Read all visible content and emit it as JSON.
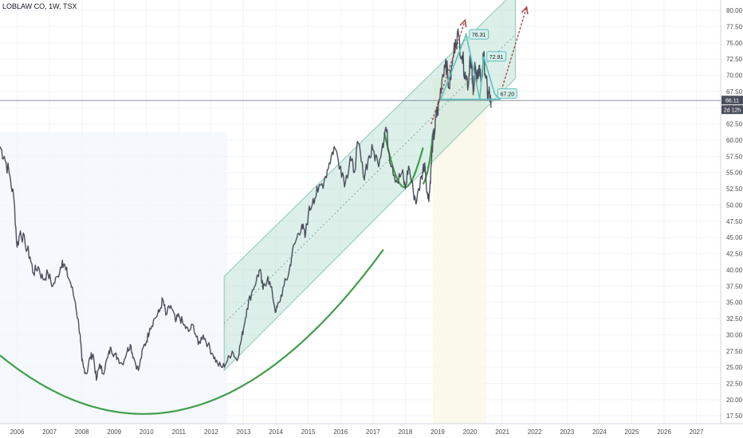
{
  "chart_data": {
    "type": "line",
    "title": "LOBLAW CO, 1W, TSX",
    "x_ticks": [
      "2006",
      "2007",
      "2008",
      "2009",
      "2010",
      "2011",
      "2012",
      "2013",
      "2014",
      "2015",
      "2016",
      "2017",
      "2018",
      "2019",
      "2020",
      "2021",
      "2022",
      "2023",
      "2024",
      "2025",
      "2026",
      "2027"
    ],
    "y_ticks": [
      "80.00",
      "77.50",
      "75.00",
      "72.50",
      "70.00",
      "67.50",
      "65.00",
      "62.50",
      "60.00",
      "57.50",
      "55.00",
      "52.50",
      "50.00",
      "47.50",
      "45.00",
      "42.50",
      "40.00",
      "37.50",
      "35.00",
      "32.50",
      "30.00",
      "27.50",
      "25.00",
      "22.50",
      "20.00",
      "17.50"
    ],
    "ylim": [
      16.3,
      81.6
    ],
    "xlim": [
      2005.47,
      2027.75
    ],
    "grid": true,
    "last_price": "66.11",
    "countdown": "2d 12h",
    "colors": {
      "price": "#4a4f5c",
      "curve": "#3f9e4a",
      "channel_fill": "#bfe1d6",
      "channel_border": "#8fc9b6",
      "pattern": "#5bbfbf",
      "arrow": "#a64b4b",
      "badge": "#4a4f5c"
    },
    "annotations": [
      {
        "label": "76.31",
        "x": 2019.88,
        "y": 76.31
      },
      {
        "label": "72.91",
        "x": 2020.42,
        "y": 72.91
      },
      {
        "label": "67.20",
        "x": 2020.76,
        "y": 67.2
      }
    ],
    "series": [
      {
        "x": [
          2005.47,
          2005.6,
          2005.75,
          2005.9,
          2006.0,
          2006.1,
          2006.25,
          2006.4,
          2006.5,
          2006.65,
          2006.8,
          2006.95,
          2007.1,
          2007.25,
          2007.4,
          2007.5,
          2007.65,
          2007.8,
          2007.95,
          2008.0,
          2008.05,
          2008.15,
          2008.25,
          2008.35,
          2008.45,
          2008.55,
          2008.65,
          2008.8,
          2008.9,
          2009.0,
          2009.1,
          2009.25,
          2009.4,
          2009.5,
          2009.6,
          2009.75,
          2009.9,
          2010.0,
          2010.1,
          2010.25,
          2010.4,
          2010.5,
          2010.6,
          2010.75,
          2010.9,
          2011.0,
          2011.15,
          2011.3,
          2011.45,
          2011.6,
          2011.75,
          2011.9,
          2012.05,
          2012.2,
          2012.35,
          2012.5,
          2012.65,
          2012.8,
          2012.9,
          2013.0,
          2013.1,
          2013.25,
          2013.4,
          2013.5,
          2013.6,
          2013.75,
          2013.9,
          2014.0,
          2014.1,
          2014.25,
          2014.4,
          2014.5,
          2014.65,
          2014.8,
          2014.9,
          2015.0,
          2015.15,
          2015.3,
          2015.5,
          2015.65,
          2015.8,
          2016.0,
          2016.15,
          2016.3,
          2016.4,
          2016.55,
          2016.7,
          2016.85,
          2017.0,
          2017.15,
          2017.3,
          2017.4,
          2017.5,
          2017.6,
          2017.75,
          2017.9,
          2018.0,
          2018.1,
          2018.25,
          2018.35,
          2018.5,
          2018.6,
          2018.7,
          2018.75,
          2018.8,
          2018.85,
          2018.9,
          2018.95,
          2019.0,
          2019.05,
          2019.15,
          2019.25,
          2019.35,
          2019.45,
          2019.55,
          2019.65,
          2019.75,
          2019.85,
          2019.95,
          2020.0,
          2020.05,
          2020.1,
          2020.15,
          2020.2,
          2020.28,
          2020.35,
          2020.42,
          2020.5,
          2020.55,
          2020.6,
          2020.65
        ],
        "values": [
          59.0,
          57.5,
          55.0,
          51.0,
          43.5,
          46.0,
          44.0,
          42.0,
          39.5,
          40.5,
          38.5,
          39.5,
          37.5,
          39.0,
          41.5,
          40.0,
          38.0,
          35.0,
          30.0,
          26.0,
          25.0,
          24.0,
          26.5,
          27.0,
          23.0,
          25.5,
          24.0,
          26.5,
          28.0,
          27.0,
          26.5,
          25.5,
          27.5,
          28.5,
          26.5,
          24.5,
          28.0,
          29.0,
          31.0,
          32.5,
          33.5,
          35.5,
          33.0,
          34.5,
          32.0,
          33.0,
          31.5,
          30.5,
          31.5,
          28.5,
          30.0,
          28.5,
          27.0,
          25.5,
          25.0,
          26.0,
          27.5,
          26.0,
          28.5,
          31.0,
          34.0,
          36.5,
          38.5,
          40.0,
          37.0,
          39.0,
          36.0,
          33.5,
          35.0,
          37.5,
          39.5,
          42.5,
          45.0,
          47.0,
          45.0,
          48.5,
          51.0,
          52.0,
          54.0,
          56.5,
          59.0,
          56.0,
          53.5,
          57.5,
          55.0,
          59.5,
          54.5,
          57.0,
          58.5,
          56.5,
          59.5,
          62.0,
          58.0,
          56.0,
          53.5,
          55.0,
          52.5,
          56.0,
          52.0,
          50.5,
          54.5,
          56.5,
          51.0,
          52.0,
          56.0,
          60.0,
          61.0,
          63.5,
          64.5,
          66.0,
          70.0,
          72.5,
          68.0,
          71.5,
          75.5,
          76.0,
          73.0,
          70.5,
          68.5,
          73.0,
          71.0,
          67.0,
          72.0,
          68.5,
          71.5,
          69.0,
          72.9,
          69.5,
          66.5,
          67.5,
          65.0
        ]
      }
    ]
  }
}
